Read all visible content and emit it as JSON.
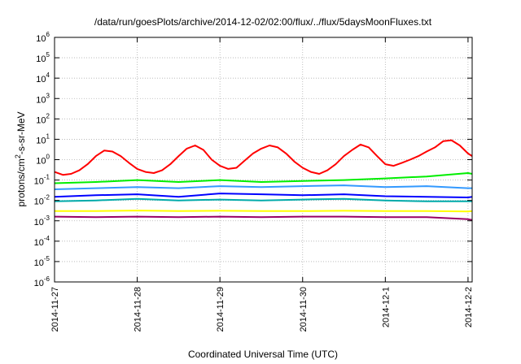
{
  "chart_data": {
    "type": "line",
    "title": "/data/run/goesPlots/archive/2014-12-02/02:00/flux/../flux/5daysMoonFluxes.txt",
    "xlabel": "Coordinated Universal Time (UTC)",
    "ylabel_main": "protons/cm",
    "ylabel_sup": "2",
    "ylabel_rest": "-s-sr-MeV",
    "y_scale": "log",
    "ylim_exponents": [
      -6,
      6
    ],
    "y_tick_exponents": [
      -6,
      -5,
      -4,
      -3,
      -2,
      -1,
      0,
      1,
      2,
      3,
      4,
      5,
      6
    ],
    "y_tick_base": "10",
    "x_unit": "days since 2014-11-27 00:00 UTC",
    "xlim": [
      0,
      5.05
    ],
    "x_ticks": [
      {
        "x": 0,
        "label": "2014-11-27"
      },
      {
        "x": 1,
        "label": "2014-11-28"
      },
      {
        "x": 2,
        "label": "2014-11-29"
      },
      {
        "x": 3,
        "label": "2014-11-30"
      },
      {
        "x": 4,
        "label": "2014-12-1"
      },
      {
        "x": 5,
        "label": "2014-12-2"
      }
    ],
    "grid": true,
    "legend": "none",
    "series": [
      {
        "color": "#ff0000",
        "x": [
          0,
          0.1,
          0.2,
          0.3,
          0.4,
          0.5,
          0.6,
          0.7,
          0.8,
          0.9,
          1,
          1.1,
          1.2,
          1.3,
          1.4,
          1.5,
          1.6,
          1.7,
          1.8,
          1.9,
          2,
          2.1,
          2.2,
          2.3,
          2.4,
          2.5,
          2.6,
          2.7,
          2.8,
          2.9,
          3,
          3.1,
          3.2,
          3.3,
          3.4,
          3.5,
          3.6,
          3.7,
          3.8,
          3.9,
          4,
          4.1,
          4.2,
          4.3,
          4.4,
          4.5,
          4.6,
          4.7,
          4.8,
          4.9,
          5,
          5.05
        ],
        "y": [
          0.25,
          0.18,
          0.2,
          0.3,
          0.6,
          1.5,
          2.8,
          2.5,
          1.5,
          0.7,
          0.35,
          0.25,
          0.22,
          0.3,
          0.6,
          1.5,
          3.5,
          5.0,
          3.0,
          1.0,
          0.5,
          0.35,
          0.4,
          0.9,
          2.0,
          3.5,
          5.0,
          4.0,
          2.0,
          0.8,
          0.4,
          0.25,
          0.2,
          0.3,
          0.6,
          1.5,
          3.0,
          5.5,
          4.0,
          1.5,
          0.6,
          0.5,
          0.7,
          1.0,
          1.5,
          2.5,
          4.0,
          8.0,
          9.0,
          5.0,
          2.0,
          1.5
        ]
      },
      {
        "color": "#00ee00",
        "x": [
          0,
          0.5,
          1,
          1.5,
          2,
          2.5,
          3,
          3.5,
          4,
          4.5,
          5,
          5.05
        ],
        "y": [
          0.07,
          0.08,
          0.1,
          0.08,
          0.1,
          0.08,
          0.09,
          0.1,
          0.12,
          0.15,
          0.22,
          0.2
        ]
      },
      {
        "color": "#3399ff",
        "x": [
          0,
          0.5,
          1,
          1.5,
          2,
          2.5,
          3,
          3.5,
          4,
          4.5,
          5,
          5.05
        ],
        "y": [
          0.035,
          0.04,
          0.045,
          0.04,
          0.05,
          0.045,
          0.05,
          0.055,
          0.045,
          0.05,
          0.04,
          0.04
        ]
      },
      {
        "color": "#0000ff",
        "x": [
          0,
          0.5,
          1,
          1.5,
          2,
          2.5,
          3,
          3.5,
          4,
          4.5,
          5,
          5.05
        ],
        "y": [
          0.015,
          0.018,
          0.02,
          0.015,
          0.022,
          0.02,
          0.018,
          0.02,
          0.016,
          0.015,
          0.014,
          0.015
        ]
      },
      {
        "color": "#00aaaa",
        "x": [
          0,
          0.5,
          1,
          1.5,
          2,
          2.5,
          3,
          3.5,
          4,
          4.5,
          5,
          5.05
        ],
        "y": [
          0.009,
          0.01,
          0.012,
          0.01,
          0.011,
          0.01,
          0.011,
          0.012,
          0.01,
          0.009,
          0.009,
          0.009
        ]
      },
      {
        "color": "#ffff00",
        "x": [
          0,
          0.5,
          1,
          1.5,
          2,
          2.5,
          3,
          3.5,
          4,
          4.5,
          5,
          5.05
        ],
        "y": [
          0.003,
          0.003,
          0.0032,
          0.003,
          0.0031,
          0.003,
          0.003,
          0.0031,
          0.003,
          0.003,
          0.0029,
          0.003
        ]
      },
      {
        "color": "#990066",
        "x": [
          0,
          0.5,
          1,
          1.5,
          2,
          2.5,
          3,
          3.5,
          4,
          4.5,
          5,
          5.05
        ],
        "y": [
          0.0016,
          0.0015,
          0.0016,
          0.0015,
          0.0016,
          0.0015,
          0.0016,
          0.0016,
          0.0015,
          0.0015,
          0.0012,
          0.0011
        ]
      }
    ]
  }
}
